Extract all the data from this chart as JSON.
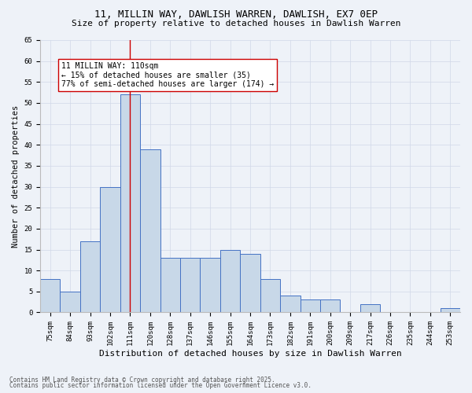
{
  "title": "11, MILLIN WAY, DAWLISH WARREN, DAWLISH, EX7 0EP",
  "subtitle": "Size of property relative to detached houses in Dawlish Warren",
  "xlabel": "Distribution of detached houses by size in Dawlish Warren",
  "ylabel": "Number of detached properties",
  "categories": [
    "75sqm",
    "84sqm",
    "93sqm",
    "102sqm",
    "111sqm",
    "120sqm",
    "128sqm",
    "137sqm",
    "146sqm",
    "155sqm",
    "164sqm",
    "173sqm",
    "182sqm",
    "191sqm",
    "200sqm",
    "209sqm",
    "217sqm",
    "226sqm",
    "235sqm",
    "244sqm",
    "253sqm"
  ],
  "values": [
    8,
    5,
    17,
    30,
    52,
    39,
    13,
    13,
    13,
    15,
    14,
    8,
    4,
    3,
    3,
    0,
    2,
    0,
    0,
    0,
    1
  ],
  "bar_color": "#c8d8e8",
  "bar_edge_color": "#4472c4",
  "marker_category_index": 4,
  "marker_line_color": "#cc0000",
  "annotation_text": "11 MILLIN WAY: 110sqm\n← 15% of detached houses are smaller (35)\n77% of semi-detached houses are larger (174) →",
  "annotation_box_color": "#ffffff",
  "annotation_box_edge_color": "#cc0000",
  "ylim": [
    0,
    65
  ],
  "yticks": [
    0,
    5,
    10,
    15,
    20,
    25,
    30,
    35,
    40,
    45,
    50,
    55,
    60,
    65
  ],
  "grid_color": "#d0d8e8",
  "background_color": "#eef2f8",
  "footer_line1": "Contains HM Land Registry data © Crown copyright and database right 2025.",
  "footer_line2": "Contains public sector information licensed under the Open Government Licence v3.0.",
  "title_fontsize": 9,
  "subtitle_fontsize": 8,
  "xlabel_fontsize": 8,
  "ylabel_fontsize": 7.5,
  "tick_fontsize": 6.5,
  "annotation_fontsize": 7,
  "footer_fontsize": 5.5
}
